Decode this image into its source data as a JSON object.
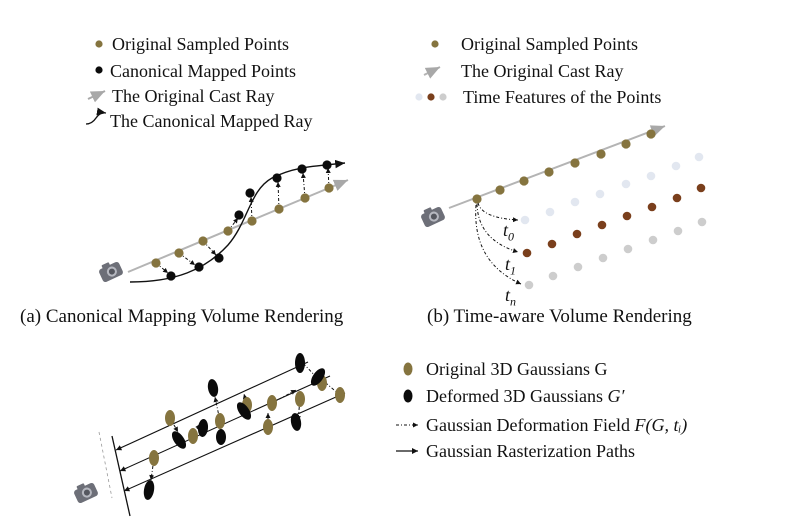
{
  "colors": {
    "original_point": "#85743f",
    "canonical_point": "#0b0b0b",
    "ray": "#a8a8a8",
    "time_light": "#e2e7f0",
    "time_brown": "#7a3f1c",
    "time_gray": "#cdcdcd",
    "line": "#111111"
  },
  "panel_a": {
    "legend": {
      "original": "Original Sampled Points",
      "canonical": "Canonical Mapped Points",
      "cast_ray": "The Original Cast Ray",
      "mapped_ray": "The Canonical Mapped Ray"
    },
    "caption": "(a) Canonical Mapping Volume Rendering"
  },
  "panel_b": {
    "legend": {
      "original": "Original Sampled Points",
      "cast_ray": "The Original Cast Ray",
      "time_features": "Time Features of the Points"
    },
    "labels": {
      "t0_base": "t",
      "t0_sub": "0",
      "t1_base": "t",
      "t1_sub": "1",
      "tn_base": "t",
      "tn_sub": "n"
    },
    "caption": "(b) Time-aware Volume Rendering"
  },
  "panel_c": {
    "legend": {
      "original_prefix": "Original 3D Gaussians ",
      "original_symbol": "G",
      "deformed_prefix": "Deformed 3D Gaussians ",
      "deformed_symbol": "G′",
      "field_prefix": "Gaussian Deformation Field ",
      "field_symbol": "F(G, tᵢ)",
      "raster": "Gaussian Rasterization Paths"
    }
  },
  "icons": [
    "camera-icon"
  ]
}
